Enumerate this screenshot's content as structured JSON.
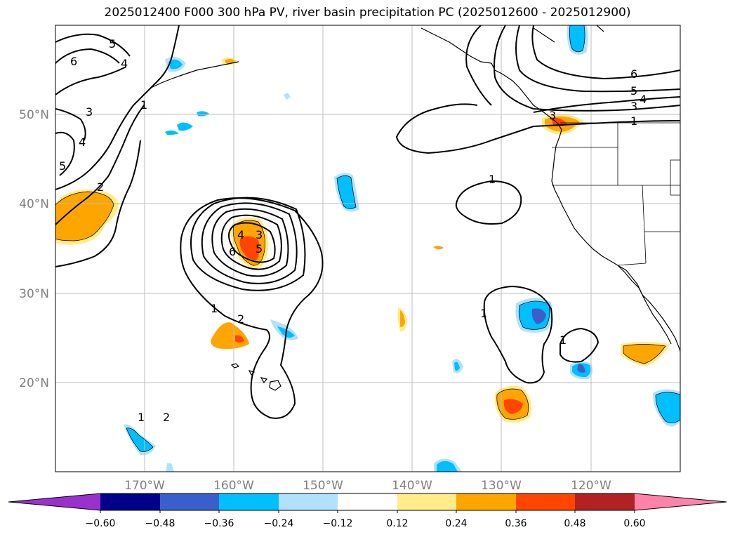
{
  "title": "2025012400 F000 300 hPa PV, river basin precipitation PC (2025012600 - 2025012900)",
  "map": {
    "lon_range": [
      180,
      110
    ],
    "lat_range": [
      10,
      60
    ],
    "lat_labels": [
      "20°N",
      "30°N",
      "40°N",
      "50°N"
    ],
    "lon_labels": [
      "170°W",
      "160°W",
      "150°W",
      "140°W",
      "130°W",
      "120°W"
    ],
    "grid": true,
    "contour_labels": [
      "1",
      "2",
      "3",
      "4",
      "5",
      "6",
      "5",
      "4",
      "3",
      "1",
      "6",
      "5",
      "4",
      "3",
      "1",
      "1",
      "1",
      "1",
      "2",
      "4",
      "5",
      "6",
      "3",
      "1",
      "2"
    ]
  },
  "colorbar": {
    "ticks": [
      "−0.60",
      "−0.48",
      "−0.36",
      "−0.24",
      "−0.12",
      "0.12",
      "0.24",
      "0.36",
      "0.48",
      "0.60"
    ],
    "colors": [
      "#9932cc",
      "#00008b",
      "#3a5fcd",
      "#00bfff",
      "#b0e2ff",
      "#ffffff",
      "#ffec8b",
      "#ffa500",
      "#ff4500",
      "#b22222",
      "#ff82ab"
    ],
    "extend": "both"
  }
}
